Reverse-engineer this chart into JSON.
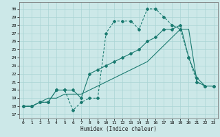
{
  "title": "",
  "xlabel": "Humidex (Indice chaleur)",
  "bg_color": "#cce8e8",
  "grid_color": "#aad4d4",
  "line_color": "#1a7a70",
  "xlim": [
    -0.5,
    23.5
  ],
  "ylim": [
    16.5,
    30.8
  ],
  "xticks": [
    0,
    1,
    2,
    3,
    4,
    5,
    6,
    7,
    8,
    9,
    10,
    11,
    12,
    13,
    14,
    15,
    16,
    17,
    18,
    19,
    20,
    21,
    22,
    23
  ],
  "yticks": [
    17,
    18,
    19,
    20,
    21,
    22,
    23,
    24,
    25,
    26,
    27,
    28,
    29,
    30
  ],
  "s1_x": [
    0,
    1,
    2,
    3,
    4,
    5,
    6,
    7,
    8,
    9,
    10,
    11,
    12,
    13,
    14,
    15,
    16,
    17,
    18,
    19,
    20,
    21,
    22,
    23
  ],
  "s1_y": [
    18,
    18,
    18.5,
    18.5,
    20,
    20,
    17.5,
    18.5,
    19,
    19,
    27,
    28.5,
    28.5,
    28.5,
    27.5,
    30,
    30,
    29,
    28,
    27.5,
    24,
    21,
    20.5,
    20.5
  ],
  "s2_x": [
    0,
    1,
    2,
    3,
    4,
    5,
    6,
    7,
    8,
    9,
    10,
    11,
    12,
    13,
    14,
    15,
    16,
    17,
    18,
    19,
    20,
    21,
    22,
    23
  ],
  "s2_y": [
    18,
    18,
    18.5,
    18.5,
    20,
    20,
    20,
    19,
    22,
    22.5,
    23,
    23.5,
    24,
    24.5,
    25,
    26,
    26.5,
    27.5,
    27.5,
    28,
    24,
    21.5,
    20.5,
    20.5
  ],
  "s3_x": [
    0,
    1,
    2,
    3,
    4,
    5,
    6,
    7,
    8,
    9,
    10,
    11,
    12,
    13,
    14,
    15,
    16,
    17,
    18,
    19,
    20,
    21,
    22,
    23
  ],
  "s3_y": [
    18,
    18,
    18.5,
    19,
    19,
    19.5,
    19.5,
    19.5,
    20,
    20.5,
    21,
    21.5,
    22,
    22.5,
    23,
    23.5,
    24.5,
    25.5,
    26.5,
    27.5,
    27.5,
    21,
    20.5,
    20.5
  ]
}
